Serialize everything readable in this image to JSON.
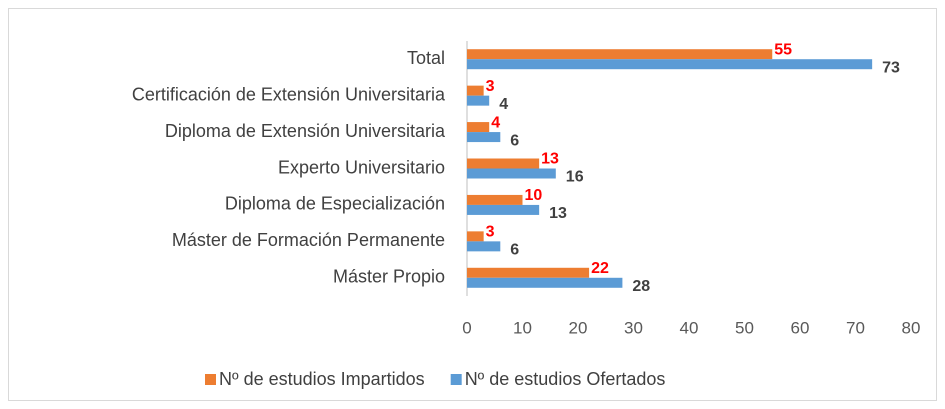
{
  "chart_data": {
    "type": "bar",
    "orientation": "horizontal",
    "categories": [
      "Total",
      "Certificación de Extensión Universitaria",
      "Diploma de Extensión Universitaria",
      "Experto Universitario",
      "Diploma de Especialización",
      "Máster de Formación Permanente",
      "Máster Propio"
    ],
    "series": [
      {
        "name": "Nº de estudios Impartidos",
        "color": "#ed7d31",
        "label_color": "#ff0000",
        "values": [
          55,
          3,
          4,
          13,
          10,
          3,
          22
        ]
      },
      {
        "name": "Nº de estudios Ofertados",
        "color": "#5b9bd5",
        "label_color": "#404040",
        "values": [
          73,
          4,
          6,
          16,
          13,
          6,
          28
        ]
      }
    ],
    "xlim": [
      0,
      80
    ],
    "xticks": [
      0,
      10,
      20,
      30,
      40,
      50,
      60,
      70,
      80
    ],
    "grid": false,
    "legend": "bottom"
  }
}
